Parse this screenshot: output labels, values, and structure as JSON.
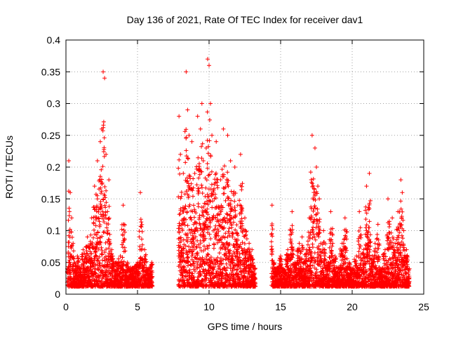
{
  "chart_data": {
    "type": "scatter",
    "title": "Day 136 of 2021, Rate Of TEC Index for receiver dav1",
    "xlabel": "GPS time / hours",
    "ylabel": "ROTI / TECUs",
    "xlim": [
      0,
      25
    ],
    "ylim": [
      0,
      0.4
    ],
    "xticks": [
      "0",
      "5",
      "10",
      "15",
      "20",
      "25"
    ],
    "yticks": [
      "0",
      "0.05",
      "0.1",
      "0.15",
      "0.2",
      "0.25",
      "0.3",
      "0.35",
      "0.4"
    ],
    "grid": true,
    "legend": "none",
    "marker": "+",
    "color": "#ff0000",
    "series": [
      {
        "x": [
          0.1,
          0.2,
          0.3,
          0.4,
          0.5,
          0.6,
          0.8,
          1.0,
          1.2,
          1.5,
          1.8,
          2.0,
          2.2,
          2.4,
          2.5,
          2.6,
          2.7,
          2.8,
          2.9,
          3.0,
          3.2,
          3.5,
          3.8,
          4.0,
          4.3,
          4.6,
          5.0,
          5.2,
          5.5,
          5.8,
          6.0,
          7.9,
          8.0,
          8.2,
          8.4,
          8.5,
          8.6,
          8.8,
          9.0,
          9.2,
          9.4,
          9.5,
          9.6,
          9.8,
          9.9,
          10.0,
          10.1,
          10.2,
          10.5,
          10.8,
          11.0,
          11.3,
          11.5,
          11.8,
          12.0,
          12.2,
          12.5,
          12.8,
          13.0,
          13.2,
          14.4,
          14.5,
          14.6,
          14.8,
          15.0,
          15.2,
          15.5,
          15.8,
          16.0,
          16.3,
          16.5,
          16.8,
          17.0,
          17.2,
          17.4,
          17.5,
          17.6,
          17.7,
          17.8,
          18.0,
          18.3,
          18.5,
          18.8,
          19.0,
          19.3,
          19.5,
          19.8,
          20.0,
          20.3,
          20.5,
          20.8,
          21.0,
          21.2,
          21.4,
          21.6,
          21.8,
          22.0,
          22.3,
          22.5,
          22.8,
          23.0,
          23.2,
          23.4,
          23.5,
          23.6,
          23.8,
          24.0
        ],
        "y": [
          0.04,
          0.21,
          0.16,
          0.12,
          0.08,
          0.05,
          0.06,
          0.04,
          0.07,
          0.09,
          0.12,
          0.17,
          0.21,
          0.24,
          0.26,
          0.35,
          0.34,
          0.22,
          0.13,
          0.18,
          0.07,
          0.05,
          0.06,
          0.14,
          0.05,
          0.04,
          0.05,
          0.16,
          0.07,
          0.04,
          0.05,
          0.28,
          0.22,
          0.19,
          0.35,
          0.29,
          0.25,
          0.24,
          0.19,
          0.28,
          0.26,
          0.3,
          0.21,
          0.23,
          0.37,
          0.36,
          0.3,
          0.25,
          0.24,
          0.18,
          0.26,
          0.25,
          0.21,
          0.2,
          0.14,
          0.22,
          0.12,
          0.08,
          0.07,
          0.04,
          0.14,
          0.05,
          0.03,
          0.04,
          0.06,
          0.04,
          0.07,
          0.13,
          0.05,
          0.08,
          0.09,
          0.07,
          0.12,
          0.25,
          0.23,
          0.2,
          0.17,
          0.15,
          0.08,
          0.1,
          0.05,
          0.13,
          0.06,
          0.04,
          0.08,
          0.12,
          0.05,
          0.03,
          0.06,
          0.13,
          0.07,
          0.17,
          0.19,
          0.06,
          0.08,
          0.11,
          0.04,
          0.07,
          0.15,
          0.12,
          0.08,
          0.13,
          0.18,
          0.16,
          0.1,
          0.07,
          0.04
        ]
      }
    ]
  }
}
